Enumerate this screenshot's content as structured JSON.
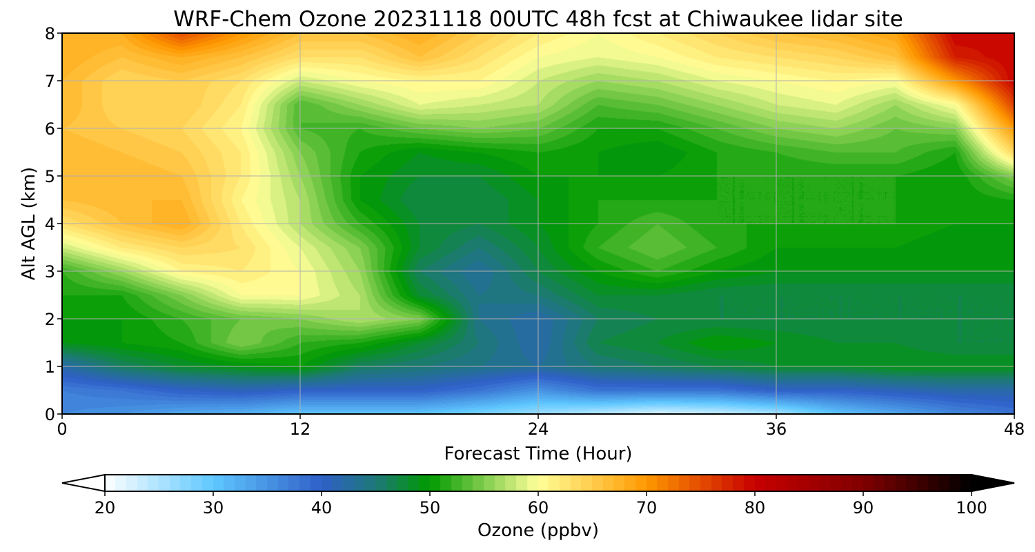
{
  "chart_data": {
    "type": "heatmap",
    "title": "WRF-Chem Ozone  20231118 00UTC 48h fcst at Chiwaukee lidar site",
    "xlabel": "Forecast Time (Hour)",
    "ylabel": "Alt AGL (km)",
    "xlim": [
      0,
      48
    ],
    "ylim": [
      0,
      8
    ],
    "xticks": [
      "0",
      "12",
      "24",
      "36",
      "48"
    ],
    "yticks": [
      "0",
      "1",
      "2",
      "3",
      "4",
      "5",
      "6",
      "7",
      "8"
    ],
    "grid": true,
    "x": [
      0,
      3,
      6,
      9,
      12,
      15,
      18,
      21,
      24,
      27,
      30,
      33,
      36,
      39,
      42,
      45,
      48
    ],
    "y": [
      0,
      0.5,
      1,
      1.5,
      2,
      2.5,
      3,
      3.5,
      4,
      4.5,
      5,
      5.5,
      6,
      6.5,
      7,
      7.5,
      8
    ],
    "z": [
      [
        36,
        35,
        33,
        32,
        30,
        30,
        30,
        28,
        26,
        24,
        22,
        23,
        25,
        30,
        33,
        36,
        38
      ],
      [
        37,
        38,
        40,
        41,
        40,
        40,
        40,
        38,
        35,
        38,
        38,
        38,
        40,
        40,
        41,
        42,
        42
      ],
      [
        42,
        46,
        48,
        49,
        50,
        46,
        45,
        44,
        43,
        45,
        46,
        47,
        48,
        48,
        49,
        49,
        49
      ],
      [
        49,
        50,
        51,
        55,
        52,
        51,
        48,
        45,
        42,
        47,
        48,
        50,
        49,
        48,
        48,
        47,
        47
      ],
      [
        50,
        50,
        52,
        54,
        55,
        57,
        55,
        44,
        42,
        46,
        47,
        47,
        47,
        47,
        47,
        47,
        47
      ],
      [
        51,
        51,
        55,
        60,
        60,
        57,
        48,
        44,
        45,
        48,
        48,
        47,
        47,
        47,
        47,
        47,
        47
      ],
      [
        52,
        56,
        61,
        62,
        60,
        56,
        46,
        43,
        47,
        50,
        52,
        50,
        49,
        49,
        49,
        49,
        49
      ],
      [
        58,
        62,
        64,
        63,
        59,
        55,
        48,
        45,
        48,
        52,
        54,
        52,
        50,
        50,
        50,
        49,
        50
      ],
      [
        63,
        66,
        68,
        62,
        57,
        52,
        48,
        47,
        49,
        51,
        53,
        51,
        51,
        51,
        51,
        50,
        50
      ],
      [
        66,
        67,
        67,
        61,
        57,
        50,
        47,
        47,
        49,
        51,
        51,
        51,
        51,
        51,
        51,
        50,
        51
      ],
      [
        67,
        67,
        66,
        62,
        56,
        50,
        48,
        48,
        50,
        50,
        50,
        51,
        51,
        51,
        51,
        50,
        55
      ],
      [
        67,
        66,
        65,
        62,
        55,
        51,
        49,
        50,
        51,
        50,
        49,
        51,
        52,
        53,
        53,
        51,
        64
      ],
      [
        66,
        65,
        64,
        61,
        53,
        52,
        54,
        55,
        54,
        51,
        51,
        53,
        55,
        56,
        54,
        55,
        70
      ],
      [
        67,
        64,
        65,
        62,
        53,
        56,
        59,
        58,
        57,
        53,
        54,
        56,
        58,
        59,
        56,
        60,
        76
      ],
      [
        67,
        64,
        65,
        63,
        58,
        60,
        61,
        61,
        58,
        56,
        57,
        59,
        60,
        61,
        60,
        70,
        80
      ],
      [
        68,
        66,
        68,
        66,
        63,
        63,
        66,
        63,
        60,
        59,
        60,
        62,
        63,
        64,
        66,
        78,
        80
      ],
      [
        68,
        68,
        75,
        70,
        66,
        66,
        68,
        65,
        62,
        60,
        62,
        64,
        66,
        67,
        69,
        80,
        79
      ]
    ],
    "colorbar": {
      "label": "Ozone  (ppbv)",
      "range": [
        20,
        100
      ],
      "step": 1,
      "extend": "both",
      "ticks": [
        "20",
        "30",
        "40",
        "50",
        "60",
        "70",
        "80",
        "90",
        "100"
      ],
      "anchors": [
        [
          20,
          "#ffffff"
        ],
        [
          30,
          "#5fc8ff"
        ],
        [
          40,
          "#3060c8"
        ],
        [
          45,
          "#1e7878"
        ],
        [
          50,
          "#009a00"
        ],
        [
          60,
          "#ffff99"
        ],
        [
          70,
          "#ff9900"
        ],
        [
          80,
          "#c80000"
        ],
        [
          90,
          "#800000"
        ],
        [
          100,
          "#000000"
        ]
      ]
    }
  }
}
